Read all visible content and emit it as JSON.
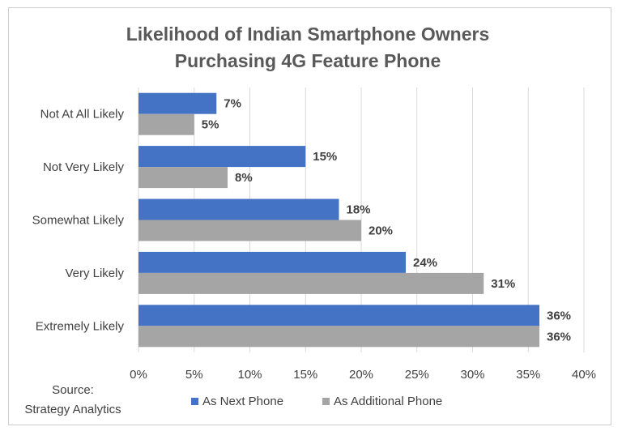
{
  "chart_data": {
    "type": "bar",
    "orientation": "horizontal",
    "title_lines": [
      "Likelihood of Indian Smartphone Owners",
      "Purchasing 4G Feature Phone"
    ],
    "categories": [
      "Not At All Likely",
      "Not Very Likely",
      "Somewhat Likely",
      "Very Likely",
      "Extremely Likely"
    ],
    "series": [
      {
        "name": "As Next Phone",
        "color": "#4472c4",
        "values": [
          7,
          15,
          18,
          24,
          36
        ],
        "labels": [
          "7%",
          "15%",
          "18%",
          "24%",
          "36%"
        ]
      },
      {
        "name": "As Additional Phone",
        "color": "#a5a5a5",
        "values": [
          5,
          8,
          20,
          31,
          36
        ],
        "labels": [
          "5%",
          "8%",
          "20%",
          "31%",
          "36%"
        ]
      }
    ],
    "xlim": [
      0,
      40
    ],
    "x_ticks": [
      "0%",
      "5%",
      "10%",
      "15%",
      "20%",
      "25%",
      "30%",
      "35%",
      "40%"
    ],
    "grid": true,
    "legend_position": "bottom",
    "source_lines": [
      "Source:",
      "Strategy Analytics"
    ]
  }
}
